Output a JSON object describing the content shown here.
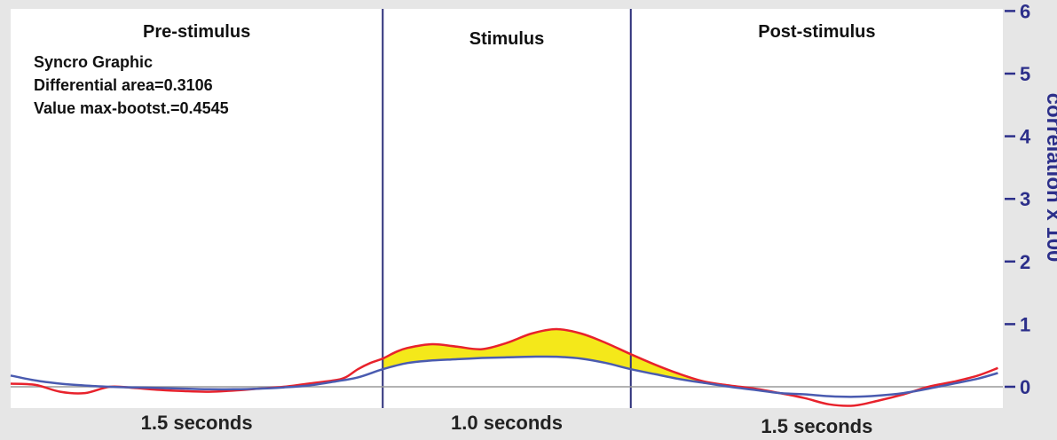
{
  "chart_data": {
    "type": "line",
    "phases": [
      {
        "label": "Pre-stimulus",
        "duration_label": "1.5 seconds",
        "x_start": 0.0,
        "x_end": 1.5
      },
      {
        "label": "Stimulus",
        "duration_label": "1.0 seconds",
        "x_start": 1.5,
        "x_end": 2.5
      },
      {
        "label": "Post-stimulus",
        "duration_label": "1.5 seconds",
        "x_start": 2.5,
        "x_end": 4.0
      }
    ],
    "annotations": [
      "Syncro Graphic",
      "Differential area=0.3106",
      "Value max-bootst.=0.4545"
    ],
    "ylabel": "correlation x 100",
    "ylim": [
      -0.2,
      6
    ],
    "yticks": [
      0,
      1,
      2,
      3,
      4,
      5,
      6
    ],
    "xlim": [
      0,
      4
    ],
    "grid": false,
    "colors": {
      "red_series": "#e8222c",
      "blue_series": "#4a5bb0",
      "fill": "#f4e81a",
      "divider": "#2c2f7a",
      "axis_text": "#2c2f8a",
      "frame_bg": "#e6e6e6"
    },
    "series": [
      {
        "color": "red",
        "x": [
          0.0,
          0.1,
          0.2,
          0.3,
          0.4,
          0.5,
          0.6,
          0.7,
          0.8,
          0.9,
          1.0,
          1.1,
          1.2,
          1.3,
          1.35,
          1.4,
          1.45,
          1.5,
          1.55,
          1.6,
          1.7,
          1.8,
          1.9,
          2.0,
          2.1,
          2.2,
          2.3,
          2.4,
          2.5,
          2.6,
          2.7,
          2.8,
          2.9,
          3.0,
          3.1,
          3.2,
          3.3,
          3.4,
          3.5,
          3.6,
          3.7,
          3.8,
          3.9,
          3.98
        ],
        "y": [
          0.05,
          0.03,
          -0.08,
          -0.1,
          0.0,
          -0.02,
          -0.05,
          -0.07,
          -0.08,
          -0.06,
          -0.03,
          0.0,
          0.05,
          0.1,
          0.15,
          0.28,
          0.38,
          0.45,
          0.55,
          0.62,
          0.68,
          0.64,
          0.6,
          0.7,
          0.85,
          0.92,
          0.85,
          0.7,
          0.52,
          0.35,
          0.2,
          0.08,
          0.02,
          -0.03,
          -0.1,
          -0.18,
          -0.28,
          -0.3,
          -0.22,
          -0.12,
          0.0,
          0.08,
          0.18,
          0.3
        ]
      },
      {
        "color": "blue",
        "x": [
          0.0,
          0.1,
          0.2,
          0.3,
          0.4,
          0.5,
          0.6,
          0.7,
          0.8,
          0.9,
          1.0,
          1.1,
          1.2,
          1.3,
          1.4,
          1.5,
          1.6,
          1.7,
          1.8,
          1.9,
          2.0,
          2.1,
          2.2,
          2.3,
          2.4,
          2.5,
          2.6,
          2.7,
          2.8,
          2.9,
          3.0,
          3.1,
          3.2,
          3.3,
          3.4,
          3.5,
          3.6,
          3.7,
          3.8,
          3.9,
          3.98
        ],
        "y": [
          0.18,
          0.1,
          0.05,
          0.02,
          0.0,
          -0.01,
          -0.02,
          -0.03,
          -0.04,
          -0.04,
          -0.03,
          -0.01,
          0.02,
          0.08,
          0.15,
          0.28,
          0.38,
          0.42,
          0.44,
          0.46,
          0.47,
          0.48,
          0.48,
          0.45,
          0.38,
          0.28,
          0.2,
          0.12,
          0.06,
          0.0,
          -0.05,
          -0.1,
          -0.12,
          -0.15,
          -0.16,
          -0.14,
          -0.1,
          -0.03,
          0.05,
          0.13,
          0.22
        ]
      }
    ],
    "fill_between": {
      "x_start": 1.5,
      "x_end": 2.8
    }
  }
}
